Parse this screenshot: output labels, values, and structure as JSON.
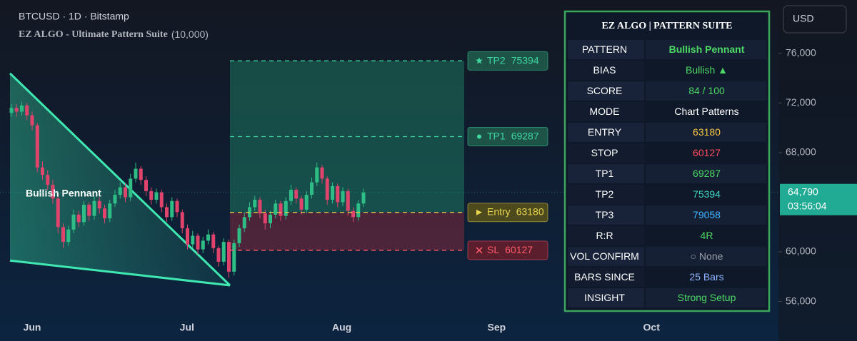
{
  "header": {
    "symbol": "BTCUSD · 1D · Bitstamp",
    "indicator": "EZ ALGO - Ultimate Pattern Suite",
    "indicator_param": "(10,000)"
  },
  "chart_data": {
    "type": "candlestick",
    "currency": "USD",
    "xticks": [
      "Jun",
      "Jul",
      "Aug",
      "Sep",
      "Oct"
    ],
    "open": [
      71200,
      71600,
      71300,
      71800,
      71000,
      70200,
      66800,
      66200,
      65400,
      64300,
      62000,
      60800,
      61800,
      63000,
      62400,
      63800,
      62900,
      64100,
      63500,
      62700,
      63900,
      64600,
      65200,
      64400,
      65900,
      66700,
      65800,
      64900,
      64200,
      64800,
      63600,
      62800,
      64100,
      63200,
      61900,
      60600,
      61300,
      60200,
      60900,
      61400,
      60300,
      59200,
      60800,
      58400,
      60700,
      61900,
      62800,
      63600,
      64200,
      63100,
      62300,
      63000,
      63900,
      62900,
      64100,
      65000,
      64300,
      63400,
      64600,
      65600,
      66800,
      65900,
      64200,
      65300,
      64000,
      64900,
      63300,
      62800,
      63900
    ],
    "high": [
      71900,
      71900,
      72100,
      72000,
      71300,
      70400,
      67300,
      66600,
      65800,
      64600,
      62300,
      62100,
      63400,
      63300,
      64100,
      64000,
      64500,
      64400,
      63800,
      64200,
      65000,
      65600,
      65500,
      66300,
      67200,
      66900,
      66100,
      65200,
      65100,
      65000,
      63900,
      64400,
      64300,
      63400,
      62200,
      61700,
      61500,
      61200,
      61800,
      61600,
      60500,
      61100,
      61000,
      61000,
      62200,
      63200,
      64000,
      64500,
      64400,
      63400,
      63300,
      64200,
      64100,
      64400,
      65400,
      65200,
      64500,
      64900,
      66000,
      67200,
      67000,
      66100,
      65600,
      65500,
      65200,
      65100,
      63600,
      64200,
      65100
    ],
    "low": [
      70900,
      70900,
      71000,
      70600,
      69800,
      66400,
      65800,
      65000,
      63900,
      61500,
      60300,
      60500,
      61500,
      62000,
      62100,
      62500,
      62600,
      63100,
      62300,
      62400,
      63600,
      64300,
      64000,
      64100,
      65600,
      65400,
      64500,
      63800,
      63900,
      63200,
      62400,
      62500,
      62800,
      61500,
      60200,
      60300,
      59800,
      59900,
      60600,
      59900,
      58800,
      58900,
      57900,
      58100,
      60400,
      61600,
      62500,
      63300,
      62700,
      61800,
      61900,
      62700,
      62500,
      62600,
      63800,
      63900,
      63000,
      63100,
      64300,
      65300,
      65500,
      63800,
      63900,
      63600,
      63700,
      62900,
      62400,
      62500,
      63600
    ],
    "close": [
      71600,
      71300,
      71800,
      71000,
      70200,
      66800,
      66200,
      65400,
      64300,
      62000,
      60800,
      61800,
      63000,
      62400,
      63800,
      62900,
      64100,
      63500,
      62700,
      63900,
      64600,
      65200,
      64400,
      65900,
      66700,
      65800,
      64900,
      64200,
      64800,
      63600,
      62800,
      64100,
      63200,
      61900,
      60600,
      61300,
      60200,
      60900,
      61400,
      60300,
      59200,
      60800,
      58400,
      60700,
      61900,
      62800,
      63600,
      64200,
      63100,
      62300,
      63000,
      63900,
      62900,
      64100,
      65000,
      64300,
      63400,
      64600,
      65600,
      66800,
      65900,
      64200,
      65300,
      64000,
      64900,
      63300,
      62800,
      63900,
      64790
    ],
    "up_color": "#2ebd85",
    "down_color": "#e0436b",
    "ylim": [
      55000,
      80300
    ],
    "yticks": [
      {
        "value": 56000,
        "label": "56,000"
      },
      {
        "value": 60000,
        "label": "60,000"
      },
      {
        "value": 68000,
        "label": "68,000"
      },
      {
        "value": 72000,
        "label": "72,000"
      },
      {
        "value": 76000,
        "label": "76,000"
      }
    ],
    "current_price": {
      "value": 64790,
      "label": "64,790"
    },
    "countdown": "03:56:04",
    "levels": [
      {
        "name": "TP2",
        "value": 75394,
        "color": "#3fd6a0",
        "marker": "star"
      },
      {
        "name": "TP1",
        "value": 69287,
        "color": "#3fd6a0",
        "marker": "dot"
      },
      {
        "name": "Entry",
        "value": 63180,
        "color": "#e8d44d",
        "marker": "arrow"
      },
      {
        "name": "SL",
        "value": 60127,
        "color": "#ff5a6a",
        "marker": "cross"
      }
    ],
    "pattern": {
      "label": "Bullish Pennant",
      "upper": [
        74390,
        57300
      ],
      "lower": [
        59300,
        57300
      ],
      "color": "#3ee8b0"
    }
  },
  "panel": {
    "title": "EZ ALGO | PATTERN SUITE",
    "rows": [
      {
        "key": "PATTERN",
        "value": "Bullish Pennant",
        "color": "#4cd964",
        "bold": true
      },
      {
        "key": "BIAS",
        "value": "Bullish ▲",
        "color": "#4cd964"
      },
      {
        "key": "SCORE",
        "value": "84 / 100",
        "color": "#4cd964"
      },
      {
        "key": "MODE",
        "value": "Chart Patterns",
        "color": "#ffffff"
      },
      {
        "key": "ENTRY",
        "value": "63180",
        "color": "#f5c542"
      },
      {
        "key": "STOP",
        "value": "60127",
        "color": "#ff4d5e"
      },
      {
        "key": "TP1",
        "value": "69287",
        "color": "#4cd964"
      },
      {
        "key": "TP2",
        "value": "75394",
        "color": "#3fd6c0"
      },
      {
        "key": "TP3",
        "value": "79058",
        "color": "#40b4ff"
      },
      {
        "key": "R:R",
        "value": "4R",
        "color": "#4cd964"
      },
      {
        "key": "VOL CONFIRM",
        "value": "○ None",
        "color": "#9aa0aa"
      },
      {
        "key": "BARS SINCE",
        "value": "25 Bars",
        "color": "#8fb4ff"
      },
      {
        "key": "INSIGHT",
        "value": "Strong Setup",
        "color": "#4cd964"
      }
    ]
  }
}
